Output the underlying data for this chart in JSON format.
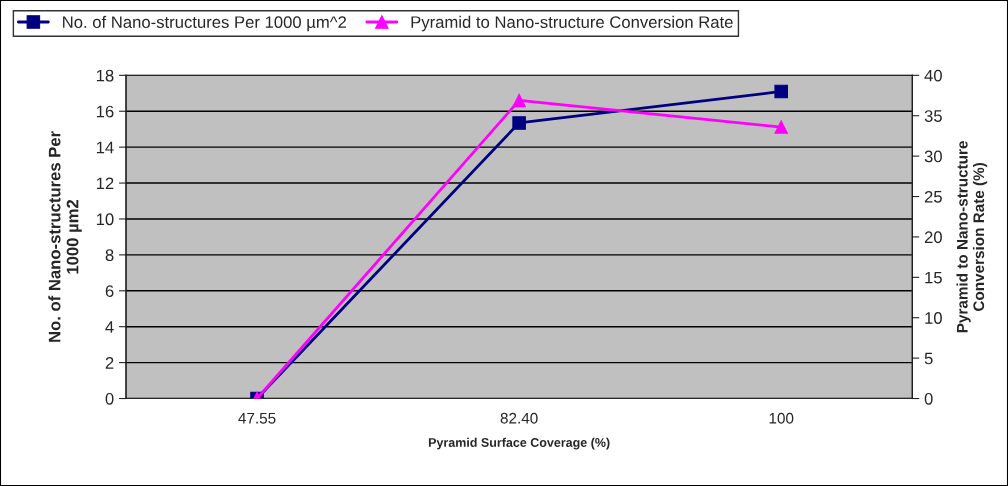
{
  "chart_data": {
    "type": "line",
    "xlabel": "Pyramid Surface Coverage (%)",
    "ylabel": "No. of Nano-structures Per\n1000 µm2",
    "y2label": "Pyramid to Nano-structure\nConversion Rate (%)",
    "categories": [
      "47.55",
      "82.40",
      "100"
    ],
    "series": [
      {
        "name": "No. of Nano-structures Per 1000 µm^2",
        "color": "#000080",
        "values": [
          0,
          15.35,
          17.1
        ],
        "marker": "square"
      },
      {
        "name": "Pyramid to Nano-structure Conversion Rate",
        "color": "#ff00ff",
        "values": [
          0,
          36.9,
          33.6
        ],
        "marker": "triangle",
        "axis": "y2"
      }
    ],
    "ylim": [
      0,
      18
    ],
    "yticks": [
      0,
      2,
      4,
      6,
      8,
      10,
      12,
      14,
      16,
      18
    ],
    "y2lim": [
      0,
      40
    ],
    "y2ticks": [
      0,
      5,
      10,
      15,
      20,
      25,
      30,
      35,
      40
    ],
    "grid": "y",
    "legend": "top"
  }
}
